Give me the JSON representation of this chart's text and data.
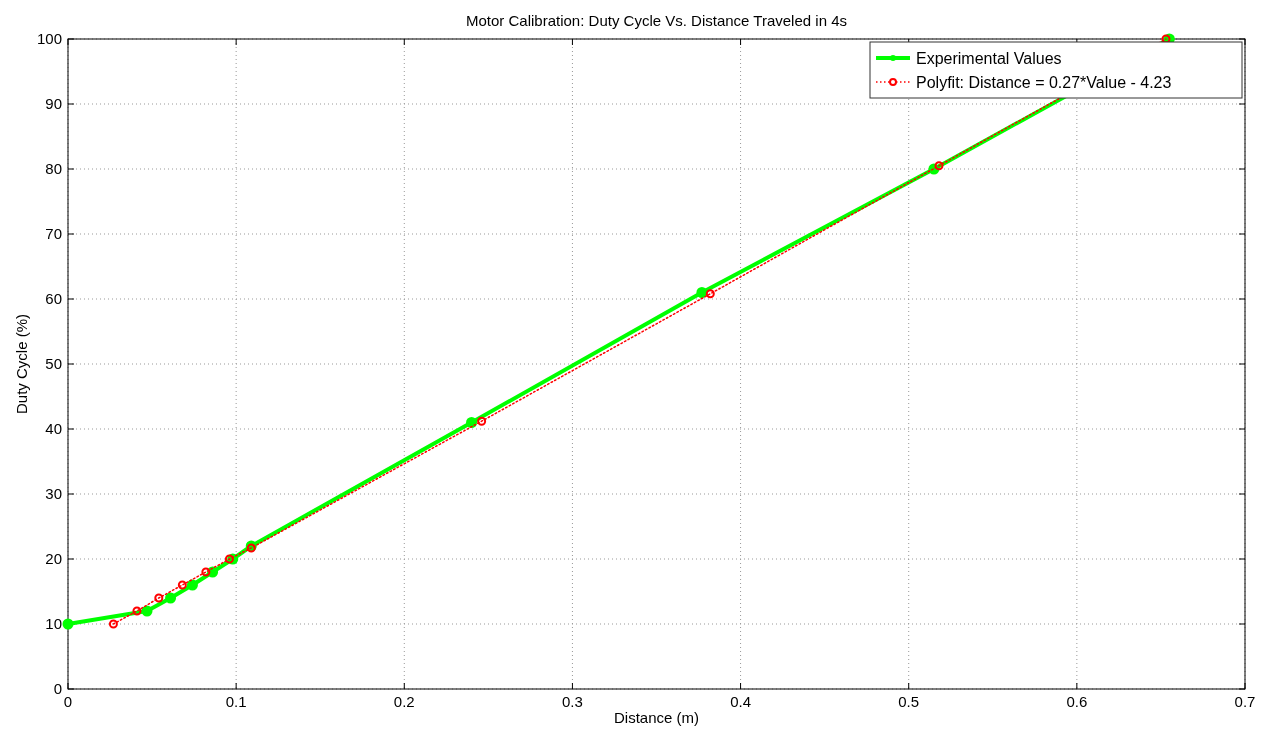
{
  "chart_data": {
    "type": "line",
    "title": "Motor Calibration: Duty Cycle Vs. Distance Traveled in 4s",
    "xlabel": "Distance (m)",
    "ylabel": "Duty Cycle (%)",
    "series": [
      {
        "name": "Experimental Values",
        "color": "#00ff00",
        "marker": "circle",
        "line_style": "solid",
        "x": [
          0,
          0.047,
          0.061,
          0.074,
          0.086,
          0.098,
          0.109,
          0.24,
          0.377,
          0.515,
          0.655
        ],
        "values": [
          10,
          12,
          14,
          16,
          18,
          20,
          22,
          41,
          61,
          80,
          100
        ]
      },
      {
        "name": "Polyfit: Distance = 0.27*Value - 4.23",
        "color": "#ff0000",
        "marker": "circle",
        "line_style": "dotted",
        "x": [
          0.027,
          0.041,
          0.054,
          0.068,
          0.082,
          0.096,
          0.109,
          0.246,
          0.382,
          0.518,
          0.653
        ],
        "values": [
          10,
          12,
          14,
          16,
          18,
          20,
          21.7,
          41.2,
          60.8,
          80.5,
          100
        ]
      }
    ],
    "xlim": [
      0,
      0.7
    ],
    "xticks": [
      0,
      0.1,
      0.2,
      0.3,
      0.4,
      0.5,
      0.6,
      0.7
    ],
    "ylim": [
      0,
      100
    ],
    "yticks": [
      0,
      10,
      20,
      30,
      40,
      50,
      60,
      70,
      80,
      90,
      100
    ],
    "grid": true,
    "legend": "top right"
  }
}
